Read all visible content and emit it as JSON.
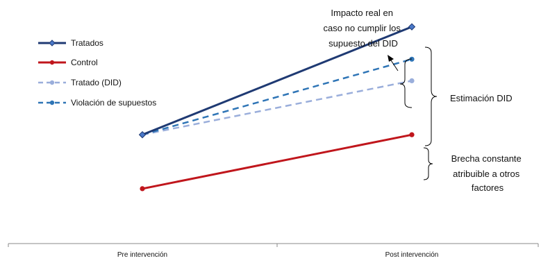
{
  "chart_data": {
    "type": "line",
    "categories": [
      "Pre intervención",
      "Post intervención"
    ],
    "ylim": [
      0,
      10
    ],
    "grid": false,
    "legend_position": "top-left",
    "series": [
      {
        "name": "Tratados",
        "values": [
          4.4,
          9.4
        ],
        "color": "#1f3a73",
        "dash": "solid",
        "marker": "diamond"
      },
      {
        "name": "Control",
        "values": [
          1.9,
          4.4
        ],
        "color": "#c0161c",
        "dash": "solid",
        "marker": "circle"
      },
      {
        "name": "Tratado (DID)",
        "values": [
          4.4,
          6.9
        ],
        "color": "#9aaedb",
        "dash": "dashed",
        "marker": "circle"
      },
      {
        "name": "Violación de supuestos",
        "values": [
          4.4,
          7.9
        ],
        "color": "#2f75b6",
        "dash": "dashed",
        "marker": "circle"
      }
    ],
    "annotations": [
      {
        "id": "impacto",
        "lines": [
          "Impacto real en",
          "caso no cumplir los",
          "supuesto del DID"
        ]
      },
      {
        "id": "estimacion",
        "lines": [
          "Estimación DID"
        ]
      },
      {
        "id": "brecha",
        "lines": [
          "Brecha constante",
          "atribuible a otros",
          "factores"
        ]
      }
    ]
  }
}
